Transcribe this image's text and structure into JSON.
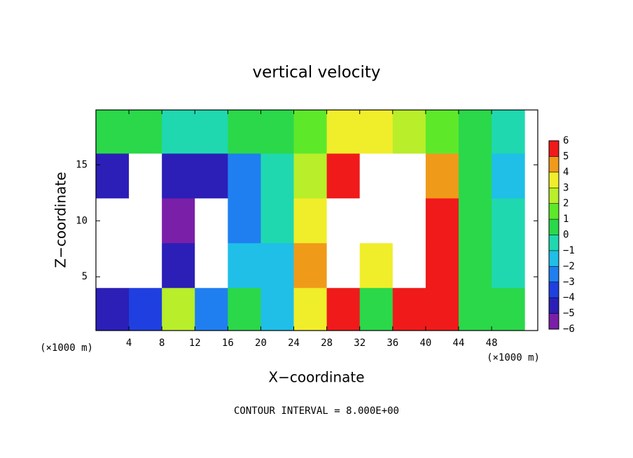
{
  "chart_data": {
    "type": "heatmap",
    "title": "vertical velocity",
    "x_label": "X−coordinate",
    "y_label": "Z−coordinate",
    "x_unit_left": "(×1000 m)",
    "x_unit_right": "(×1000 m)",
    "footer": "CONTOUR INTERVAL = 8.000E+00",
    "x": [
      2,
      6,
      10,
      14,
      18,
      22,
      26,
      30,
      34,
      38,
      42,
      46,
      50
    ],
    "y": [
      18,
      14,
      10,
      6,
      2
    ],
    "z": [
      [
        0,
        0,
        -1,
        -1,
        0,
        0,
        1,
        3,
        3,
        2,
        1,
        0,
        -1
      ],
      [
        -5,
        -8,
        -5,
        -5,
        -3,
        -1,
        2,
        6,
        8,
        7,
        4,
        0,
        -2
      ],
      [
        -8,
        -8,
        -6,
        -8,
        -3,
        -1,
        3,
        8,
        8,
        8,
        6,
        0,
        -1
      ],
      [
        -8,
        -8,
        -5,
        -8,
        -2,
        -2,
        4,
        8,
        3,
        8,
        6,
        0,
        -1
      ],
      [
        -5,
        -4,
        2,
        -3,
        0,
        -2,
        3,
        6,
        0,
        6,
        5,
        0,
        0
      ]
    ],
    "xlim": [
      0,
      53.6
    ],
    "ylim": [
      0.2,
      19.9
    ],
    "xticks": [
      4,
      8,
      12,
      16,
      20,
      24,
      28,
      32,
      36,
      40,
      44,
      48
    ],
    "yticks": [
      5,
      10,
      15
    ],
    "colorbar_lim": [
      -6,
      6
    ],
    "colorbar_ticks": [
      {
        "value": -6,
        "label": "−6"
      },
      {
        "value": -5,
        "label": "−5"
      },
      {
        "value": -4,
        "label": "−4"
      },
      {
        "value": -3,
        "label": "−3"
      },
      {
        "value": -2,
        "label": "−2"
      },
      {
        "value": -1,
        "label": "−1"
      },
      0,
      1,
      2,
      3,
      4,
      5,
      6
    ],
    "colors": [
      "#7a1fa8",
      "#2b1fb8",
      "#1f3fe0",
      "#1f7ff0",
      "#1fbfe8",
      "#1fd8b0",
      "#2ad84a",
      "#5ee82a",
      "#b8ee2a",
      "#f0ee2a",
      "#f09a1a",
      "#f01a1a"
    ],
    "over_color": "#ffffff",
    "under_color": "#ffffff"
  }
}
